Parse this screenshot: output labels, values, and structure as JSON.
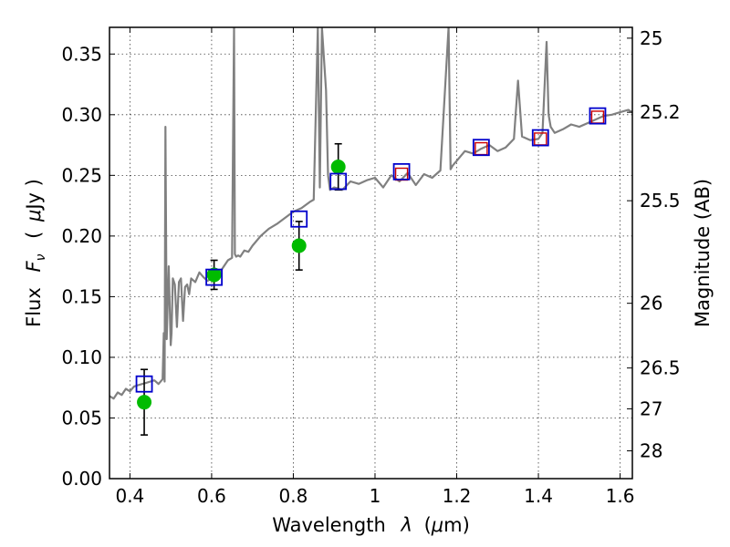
{
  "chart_data": {
    "type": "line",
    "xlabel_text": "Wavelength",
    "xlabel_symbol": "λ",
    "xlabel_unit_open": "(",
    "xlabel_unit_mu": "μ",
    "xlabel_unit_rest": "m)",
    "ylabel_text": "Flux",
    "ylabel_symbol": "F",
    "ylabel_sub": "ν",
    "ylabel_unit_open": "(",
    "ylabel_unit_mu": "μ",
    "ylabel_unit_rest": "Jy )",
    "y2label": "Magnitude (AB)",
    "xlim": [
      0.35,
      1.63
    ],
    "ylim": [
      0.0,
      0.372
    ],
    "x_ticks": [
      {
        "value": 0.4,
        "label": "0.4"
      },
      {
        "value": 0.6,
        "label": "0.6"
      },
      {
        "value": 0.8,
        "label": "0.8"
      },
      {
        "value": 1.0,
        "label": "1"
      },
      {
        "value": 1.2,
        "label": "1.2"
      },
      {
        "value": 1.4,
        "label": "1.4"
      },
      {
        "value": 1.6,
        "label": "1.6"
      }
    ],
    "y_ticks": [
      {
        "value": 0.0,
        "label": "0.00"
      },
      {
        "value": 0.05,
        "label": "0.05"
      },
      {
        "value": 0.1,
        "label": "0.10"
      },
      {
        "value": 0.15,
        "label": "0.15"
      },
      {
        "value": 0.2,
        "label": "0.20"
      },
      {
        "value": 0.25,
        "label": "0.25"
      },
      {
        "value": 0.3,
        "label": "0.30"
      },
      {
        "value": 0.35,
        "label": "0.35"
      }
    ],
    "y2_ticks": [
      {
        "value": 25,
        "label": "25"
      },
      {
        "value": 25.2,
        "label": "25.2"
      },
      {
        "value": 25.5,
        "label": "25.5"
      },
      {
        "value": 26,
        "label": "26"
      },
      {
        "value": 26.5,
        "label": "26.5"
      },
      {
        "value": 27,
        "label": "27"
      },
      {
        "value": 28,
        "label": "28"
      }
    ],
    "series": [
      {
        "name": "model spectrum",
        "color": "#808080",
        "x": [
          0.35,
          0.36,
          0.37,
          0.38,
          0.39,
          0.4,
          0.41,
          0.42,
          0.43,
          0.44,
          0.45,
          0.46,
          0.47,
          0.48,
          0.483,
          0.485,
          0.487,
          0.49,
          0.495,
          0.5,
          0.502,
          0.505,
          0.51,
          0.515,
          0.52,
          0.525,
          0.53,
          0.535,
          0.54,
          0.545,
          0.55,
          0.56,
          0.57,
          0.58,
          0.59,
          0.6,
          0.61,
          0.62,
          0.63,
          0.64,
          0.65,
          0.655,
          0.657,
          0.66,
          0.665,
          0.67,
          0.68,
          0.69,
          0.7,
          0.72,
          0.74,
          0.76,
          0.78,
          0.8,
          0.82,
          0.84,
          0.85,
          0.86,
          0.865,
          0.87,
          0.88,
          0.885,
          0.89,
          0.9,
          0.92,
          0.94,
          0.96,
          0.98,
          1.0,
          1.02,
          1.04,
          1.06,
          1.08,
          1.1,
          1.12,
          1.14,
          1.16,
          1.18,
          1.185,
          1.19,
          1.2,
          1.22,
          1.24,
          1.26,
          1.28,
          1.3,
          1.32,
          1.34,
          1.35,
          1.36,
          1.38,
          1.4,
          1.41,
          1.42,
          1.425,
          1.43,
          1.44,
          1.46,
          1.48,
          1.5,
          1.52,
          1.54,
          1.56,
          1.58,
          1.6,
          1.62,
          1.63
        ],
        "y": [
          0.068,
          0.066,
          0.071,
          0.069,
          0.074,
          0.072,
          0.076,
          0.077,
          0.078,
          0.079,
          0.08,
          0.081,
          0.078,
          0.082,
          0.12,
          0.08,
          0.29,
          0.115,
          0.175,
          0.11,
          0.12,
          0.165,
          0.16,
          0.125,
          0.162,
          0.165,
          0.13,
          0.158,
          0.16,
          0.152,
          0.165,
          0.162,
          0.17,
          0.166,
          0.163,
          0.165,
          0.168,
          0.17,
          0.175,
          0.18,
          0.182,
          0.372,
          0.185,
          0.183,
          0.184,
          0.183,
          0.188,
          0.187,
          0.192,
          0.2,
          0.206,
          0.21,
          0.215,
          0.22,
          0.223,
          0.228,
          0.23,
          0.372,
          0.24,
          0.372,
          0.32,
          0.25,
          0.238,
          0.24,
          0.238,
          0.245,
          0.243,
          0.246,
          0.248,
          0.24,
          0.25,
          0.245,
          0.252,
          0.242,
          0.251,
          0.248,
          0.254,
          0.372,
          0.255,
          0.258,
          0.262,
          0.27,
          0.268,
          0.272,
          0.275,
          0.27,
          0.273,
          0.28,
          0.328,
          0.282,
          0.279,
          0.28,
          0.285,
          0.36,
          0.3,
          0.29,
          0.285,
          0.288,
          0.292,
          0.29,
          0.293,
          0.296,
          0.299,
          0.3,
          0.302,
          0.304,
          0.302
        ]
      },
      {
        "name": "observed photometry",
        "marker": "circle",
        "color": "#00bb00",
        "points": [
          {
            "x": 0.435,
            "y": 0.063,
            "err_lo": 0.027,
            "err_hi": 0.027
          },
          {
            "x": 0.606,
            "y": 0.168,
            "err_lo": 0.012,
            "err_hi": 0.012
          },
          {
            "x": 0.814,
            "y": 0.192,
            "err_lo": 0.02,
            "err_hi": 0.02
          },
          {
            "x": 0.91,
            "y": 0.257,
            "err_lo": 0.019,
            "err_hi": 0.019
          }
        ]
      },
      {
        "name": "model synthetic photometry",
        "marker": "square-open",
        "color": "#0000cc",
        "points": [
          {
            "x": 0.435,
            "y": 0.078
          },
          {
            "x": 0.606,
            "y": 0.166
          },
          {
            "x": 0.814,
            "y": 0.214
          },
          {
            "x": 0.91,
            "y": 0.245
          },
          {
            "x": 1.065,
            "y": 0.253
          },
          {
            "x": 1.26,
            "y": 0.273
          },
          {
            "x": 1.405,
            "y": 0.281
          },
          {
            "x": 1.545,
            "y": 0.299
          }
        ]
      },
      {
        "name": "model photometry (red)",
        "marker": "square-open",
        "color": "#cc0000",
        "points": [
          {
            "x": 1.065,
            "y": 0.251
          },
          {
            "x": 1.26,
            "y": 0.272
          },
          {
            "x": 1.405,
            "y": 0.28
          },
          {
            "x": 1.545,
            "y": 0.298
          }
        ]
      }
    ],
    "grid": true
  }
}
